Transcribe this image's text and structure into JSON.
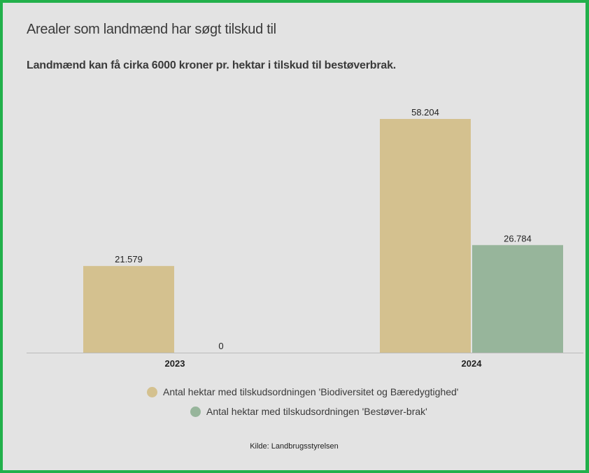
{
  "title": "Arealer som landmænd har søgt tilskud til",
  "subtitle": "Landmænd kan få cirka 6000 kroner pr. hektar i tilskud til bestøverbrak.",
  "source": "Kilde: Landbrugsstyrelsen",
  "chart_data": {
    "type": "bar",
    "categories": [
      "2023",
      "2024"
    ],
    "series": [
      {
        "name": "Antal hektar med tilskudsordningen 'Biodiversitet og Bæredygtighed'",
        "color": "#d4c18f",
        "values": [
          21579,
          58204
        ],
        "labels": [
          "21.579",
          "58.204"
        ]
      },
      {
        "name": "Antal hektar med tilskudsordningen 'Bestøver-brak'",
        "color": "#97b59b",
        "values": [
          0,
          26784
        ],
        "labels": [
          "0",
          "26.784"
        ]
      }
    ],
    "ylim": [
      0,
      58204
    ],
    "legend": "bottom",
    "grid": false
  }
}
